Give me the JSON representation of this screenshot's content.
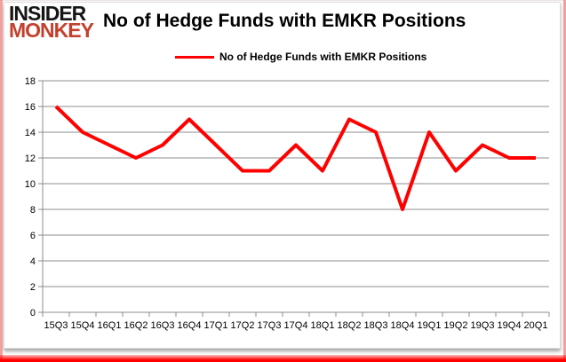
{
  "header": {
    "logo_line1": "INSIDER",
    "logo_line2": "MONKEY",
    "title": "No of Hedge Funds with EMKR Positions"
  },
  "legend": {
    "label": "No of Hedge Funds with EMKR Positions"
  },
  "colors": {
    "line": "#ff0000",
    "gridline": "#8c8c8c",
    "axis": "#8c8c8c",
    "tick_label": "#000000",
    "logo_insider": "#151515",
    "logo_monkey": "#c4402e",
    "page_border": "#f2a09d",
    "bottom_bar": "#ff0000"
  },
  "chart_data": {
    "type": "line",
    "title": "No of Hedge Funds with EMKR Positions",
    "series_name": "No of Hedge Funds with EMKR Positions",
    "categories": [
      "15Q3",
      "15Q4",
      "16Q1",
      "16Q2",
      "16Q3",
      "16Q4",
      "17Q1",
      "17Q2",
      "17Q3",
      "17Q4",
      "18Q1",
      "18Q2",
      "18Q3",
      "18Q4",
      "19Q1",
      "19Q2",
      "19Q3",
      "19Q4",
      "20Q1"
    ],
    "values": [
      16,
      14,
      13,
      12,
      13,
      15,
      13,
      11,
      11,
      13,
      11,
      15,
      14,
      8,
      14,
      11,
      13,
      12,
      12
    ],
    "xlabel": "",
    "ylabel": "",
    "ylim": [
      0,
      18
    ],
    "ytick_step": 2,
    "grid": true,
    "legend_position": "top-center",
    "line_color": "#ff0000"
  }
}
